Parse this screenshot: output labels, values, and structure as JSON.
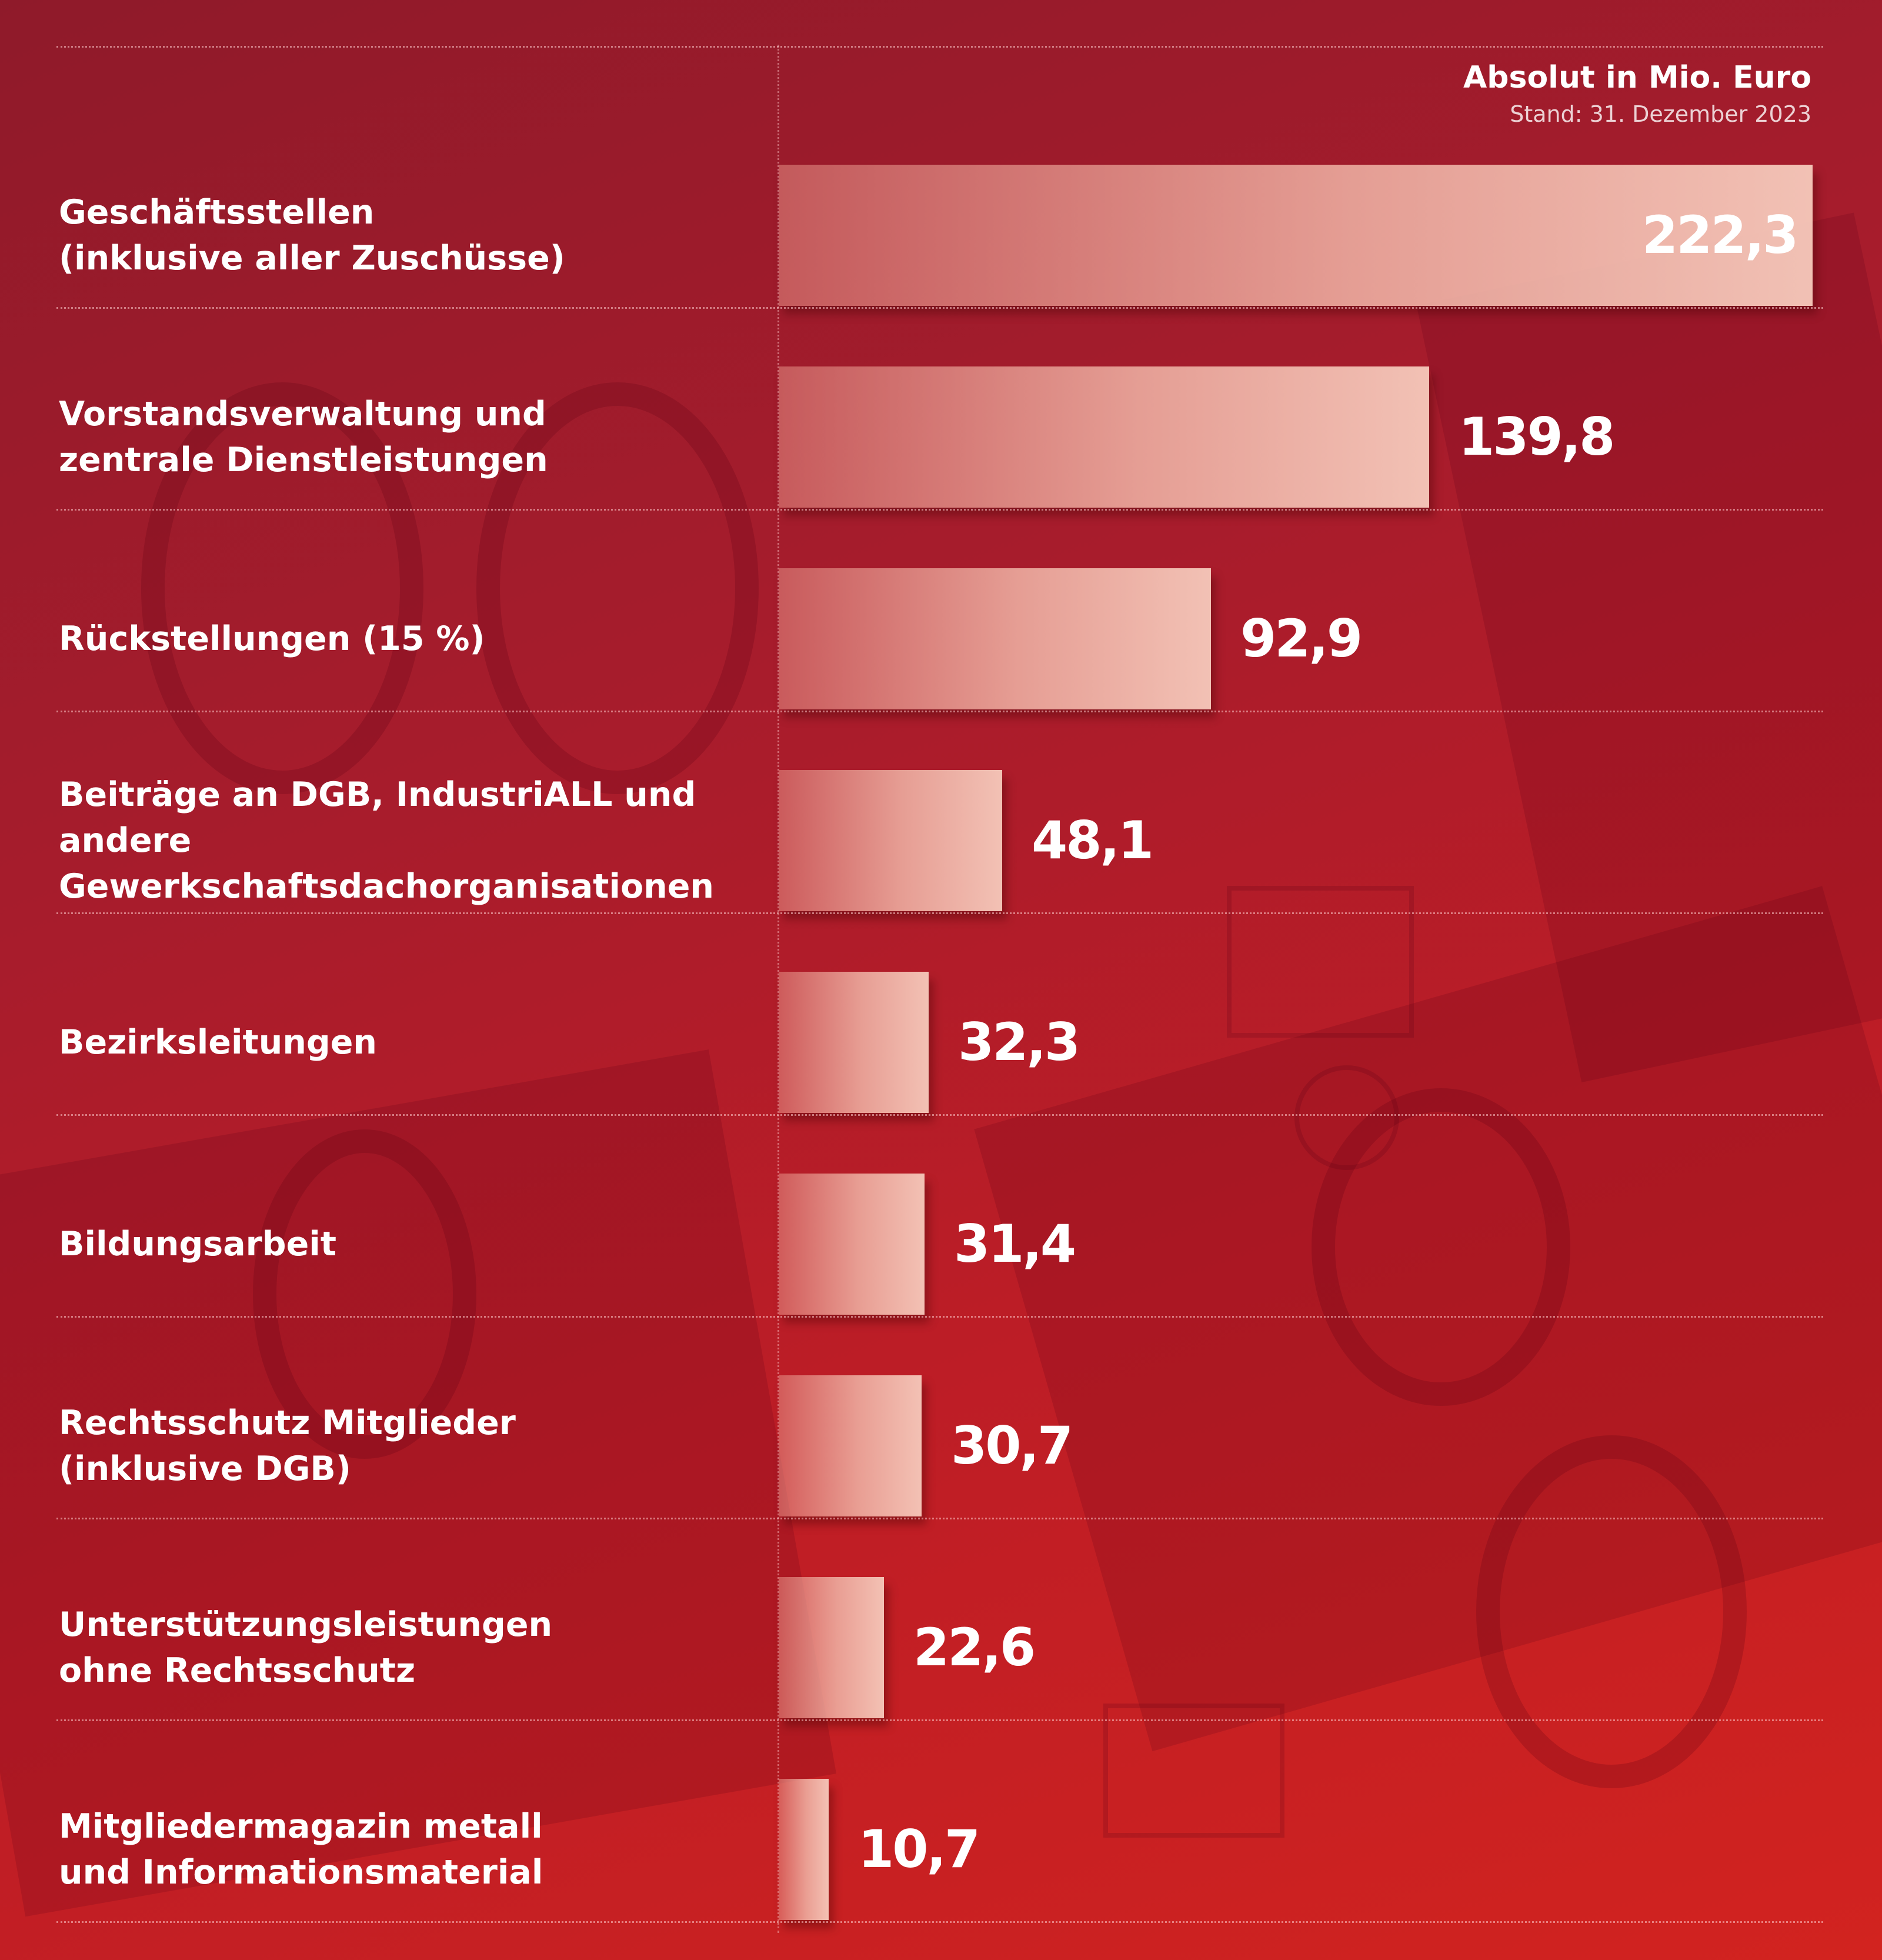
{
  "header": {
    "unit_title": "Absolut in Mio. Euro",
    "as_of": "Stand: 31. Dezember 2023"
  },
  "chart_data": {
    "type": "bar",
    "orientation": "horizontal",
    "title": "",
    "xlabel": "",
    "ylabel": "",
    "unit": "Absolut in Mio. Euro",
    "xlim": [
      0,
      222.3
    ],
    "grid": false,
    "categories": [
      [
        "Geschäftsstellen",
        "(inklusive aller Zuschüsse)"
      ],
      [
        "Vorstandsverwaltung und",
        "zentrale Dienstleistungen"
      ],
      [
        "Rückstellungen (15 %)"
      ],
      [
        "Beiträge an DGB, IndustriALL und andere",
        "Gewerkschaftsdachorganisationen"
      ],
      [
        "Bezirksleitungen"
      ],
      [
        "Bildungsarbeit"
      ],
      [
        "Rechtsschutz Mitglieder",
        "(inklusive DGB)"
      ],
      [
        "Unterstützungsleistungen",
        "ohne Rechtsschutz"
      ],
      [
        "Mitgliedermagazin metall",
        "und Informationsmaterial"
      ]
    ],
    "values": [
      222.3,
      139.8,
      92.9,
      48.1,
      32.3,
      31.4,
      30.7,
      22.6,
      10.7
    ],
    "value_labels": [
      "222,3",
      "139,8",
      "92,9",
      "48,1",
      "32,3",
      "31,4",
      "30,7",
      "22,6",
      "10,7"
    ]
  },
  "colors": {
    "background_dark": "#8f1a2a",
    "background_light": "#d2231f",
    "bar_fill": "#f0b4a6",
    "text": "#ffffff"
  }
}
